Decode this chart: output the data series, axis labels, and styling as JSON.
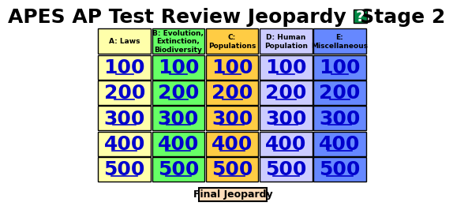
{
  "title": "APES AP Test Review Jeopardy  Stage 2",
  "title_fontsize": 18,
  "title_color": "#000000",
  "background_color": "#ffffff",
  "categories": [
    "A: Laws",
    "B: Evolution,\nExtinction,\nBiodiversity",
    "C:\nPopulations",
    "D: Human\nPopulation",
    "E:\nMiscellaneous"
  ],
  "cat_colors": [
    "#ffffaa",
    "#66ff66",
    "#ffcc44",
    "#ccccff",
    "#6688ff"
  ],
  "cat_text_color": "#000000",
  "values": [
    100,
    200,
    300,
    400,
    500
  ],
  "cell_colors": [
    "#ffffaa",
    "#66ff66",
    "#ffcc44",
    "#ccccff",
    "#6688ff"
  ],
  "value_text_color": "#0000cc",
  "grid_line_color": "#000000",
  "final_btn_color": "#ffddbb",
  "final_btn_text": "Final Jeopardy",
  "final_btn_text_color": "#000000",
  "question_mark_color": "#008844",
  "num_cols": 5,
  "num_rows": 5,
  "underline_widths": [
    28,
    32,
    38,
    40,
    42
  ]
}
